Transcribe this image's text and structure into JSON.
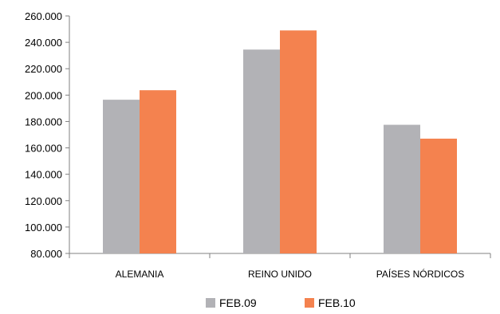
{
  "chart_data": {
    "type": "bar",
    "categories": [
      "ALEMANIA",
      "REINO UNIDO",
      "PAÍSES NÓRDICOS"
    ],
    "series": [
      {
        "name": "FEB.09",
        "values": [
          196500,
          234500,
          177500
        ],
        "color": "#b2b2b6"
      },
      {
        "name": "FEB.10",
        "values": [
          203700,
          249000,
          167000
        ],
        "color": "#f4824f"
      }
    ],
    "ylim": [
      80000,
      260000
    ],
    "yticks": [
      "80.000",
      "100.000",
      "120.000",
      "140.000",
      "160.000",
      "180.000",
      "200.000",
      "220.000",
      "240.000",
      "260.000"
    ],
    "ytick_values": [
      80000,
      100000,
      120000,
      140000,
      160000,
      180000,
      200000,
      220000,
      240000,
      260000
    ],
    "grid": false,
    "legend_position": "bottom"
  }
}
